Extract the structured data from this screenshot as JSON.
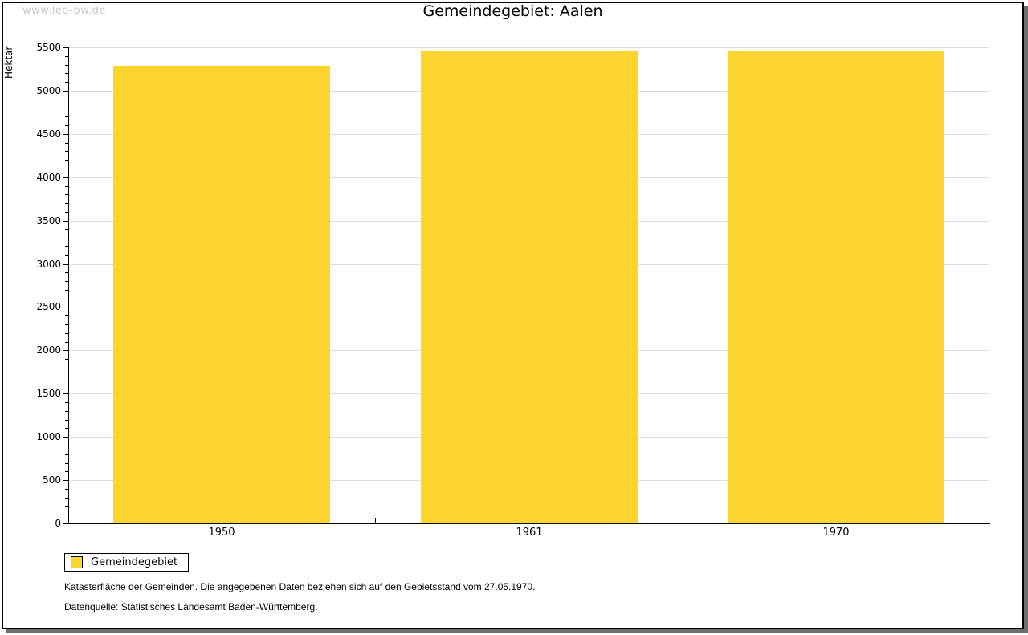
{
  "watermark": "www.leo-bw.de",
  "chart_data": {
    "type": "bar",
    "title": "Gemeindegebiet: Aalen",
    "xlabel": "",
    "ylabel": "Hektar",
    "categories": [
      "1950",
      "1961",
      "1970"
    ],
    "series": [
      {
        "name": "Gemeindegebiet",
        "values": [
          5290,
          5465,
          5465
        ]
      }
    ],
    "ylim": [
      0,
      5500
    ],
    "ytick_step": 500,
    "yminor_step": 100,
    "grid": true,
    "legend_position": "bottom-left",
    "bar_color": "#FCD42D"
  },
  "legend": {
    "label": "Gemeindegebiet",
    "swatch_color": "#FCD42D"
  },
  "notes": [
    "Katasterfläche der Gemeinden. Die angegebenen Daten beziehen sich auf den Gebietsstand vom 27.05.1970.",
    "Datenquelle: Statistisches Landesamt Baden-Württemberg."
  ],
  "colors": {
    "bar": "#FCD42D",
    "gridline": "#DDDDDD",
    "frame_border": "#000000",
    "frame_shadow": "#6E6E6E",
    "watermark": "#C9C9C9"
  }
}
